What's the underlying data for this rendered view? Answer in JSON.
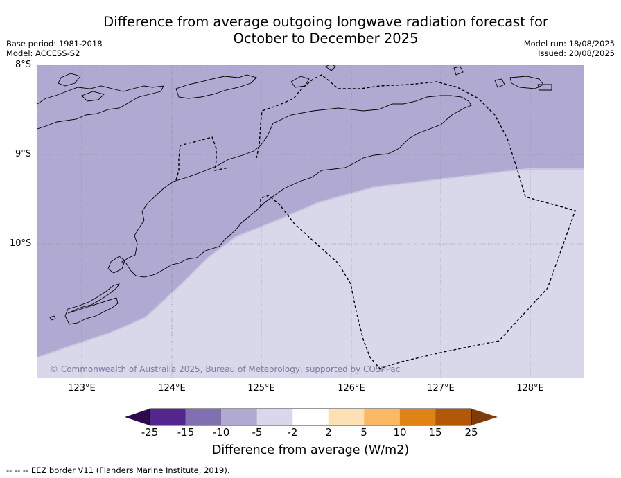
{
  "header": {
    "title_line1": "Difference from average outgoing longwave radiation forecast for",
    "title_line2": "October to December 2025",
    "base_period": "Base period: 1981-2018",
    "model": "Model: ACCESS-S2",
    "model_run": "Model run: 18/08/2025",
    "issued": "Issued: 20/08/2025"
  },
  "map": {
    "latitude_labels": [
      "8°S",
      "9°S",
      "10°S"
    ],
    "longitude_labels": [
      "123°E",
      "124°E",
      "125°E",
      "126°E",
      "127°E",
      "128°E"
    ],
    "credit": "© Commonwealth of Australia 2025, Bureau of Meteorology, supported by COSPPac",
    "field_zones": [
      {
        "category": "-10 to -5",
        "color": "#b0aad2"
      },
      {
        "category": "-5 to -2",
        "color": "#d8d8ea"
      }
    ],
    "colors": {
      "land_outline": "#000000",
      "eez_border": "#000000",
      "gridlines": "#7f7f7f"
    }
  },
  "colorbar": {
    "title": "Difference from average (W/m2)",
    "tick_labels": [
      "-25",
      "-15",
      "-10",
      "-5",
      "-2",
      "2",
      "5",
      "10",
      "15",
      "25"
    ],
    "colors": [
      "#2d0a4e",
      "#54278f",
      "#7f70b0",
      "#b0aad2",
      "#d8d8ea",
      "#ffffff",
      "#fee0b6",
      "#fdb863",
      "#e08214",
      "#b35806",
      "#7f3b08"
    ]
  },
  "footer": {
    "eez_note": "-- -- -- EEZ border V11 (Flanders Marine Institute, 2019)."
  }
}
